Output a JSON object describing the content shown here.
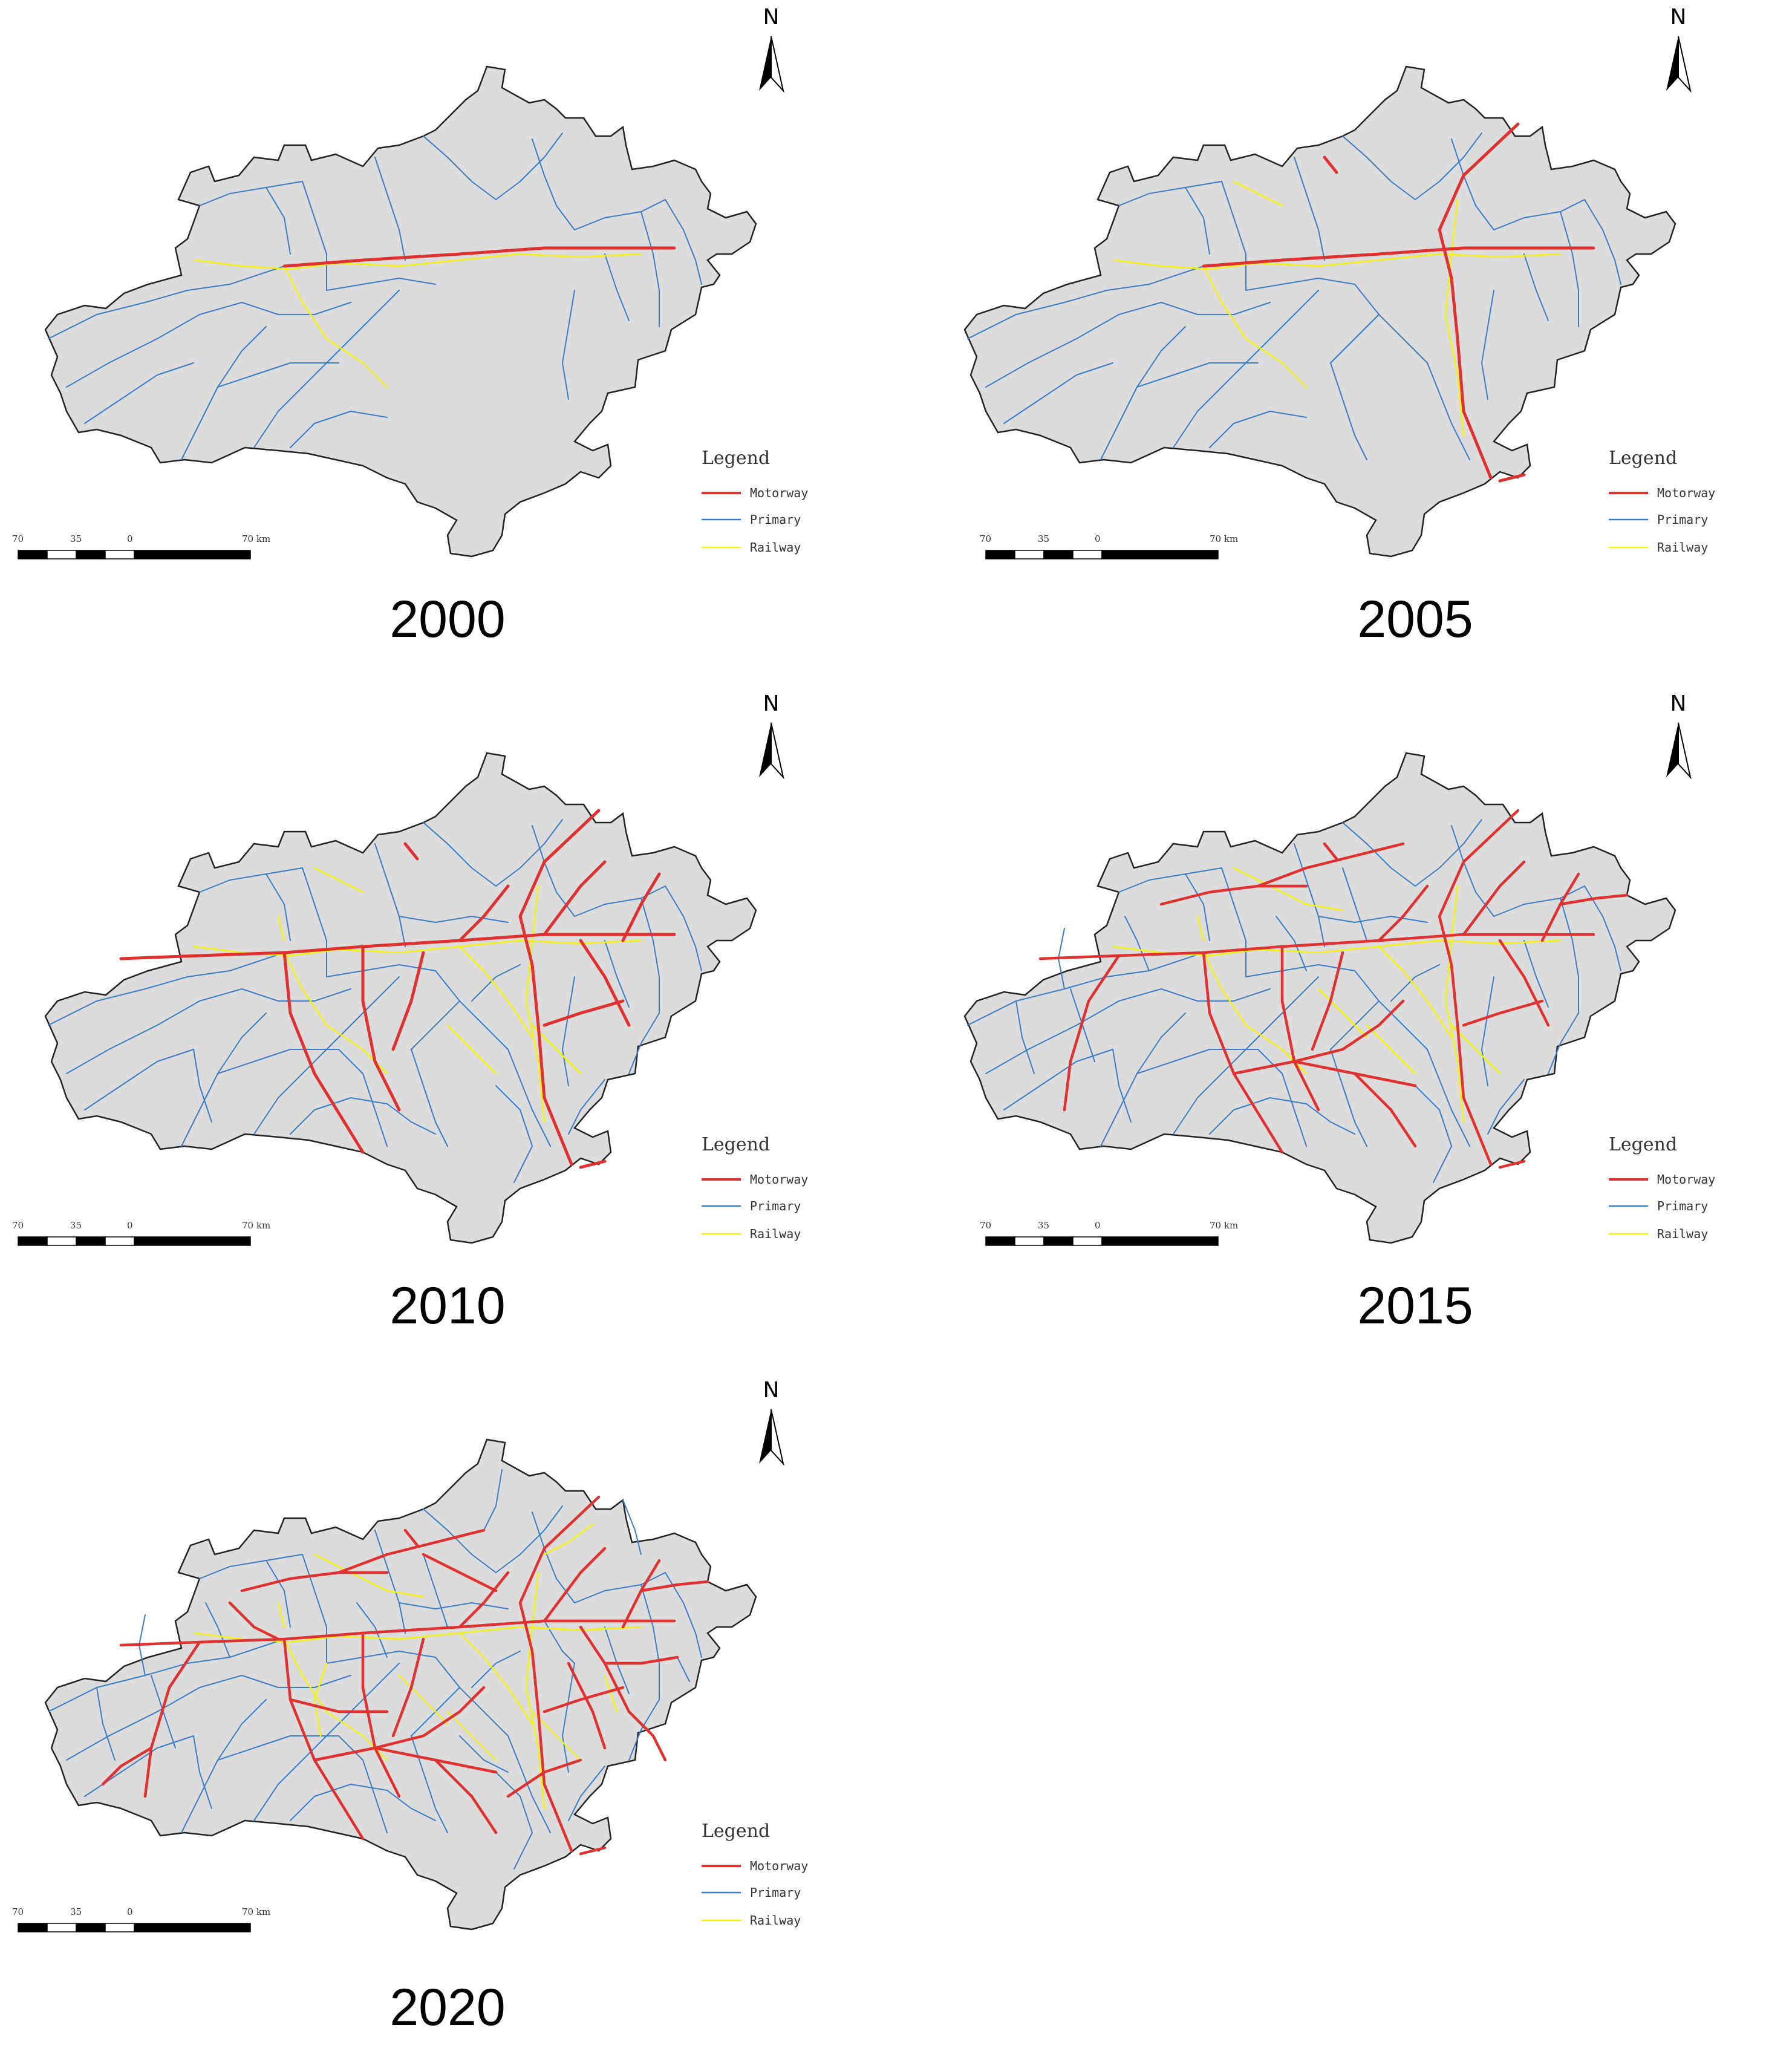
{
  "panels": [
    {
      "year": "2000",
      "density": 0
    },
    {
      "year": "2005",
      "density": 1
    },
    {
      "year": "2010",
      "density": 2
    },
    {
      "year": "2015",
      "density": 3
    },
    {
      "year": "2020",
      "density": 4
    }
  ],
  "legend": {
    "title": "Legend",
    "items": [
      {
        "label": "Motorway",
        "color": "#e03030"
      },
      {
        "label": "Primary",
        "color": "#3a7cc8"
      },
      {
        "label": "Railway",
        "color": "#f2f20a"
      }
    ]
  },
  "north": {
    "label": "N"
  },
  "scalebar": {
    "labels": [
      "70",
      "35",
      "0",
      "70 km"
    ]
  },
  "colors": {
    "land": "#dcdcdc",
    "boundary": "#222222"
  }
}
